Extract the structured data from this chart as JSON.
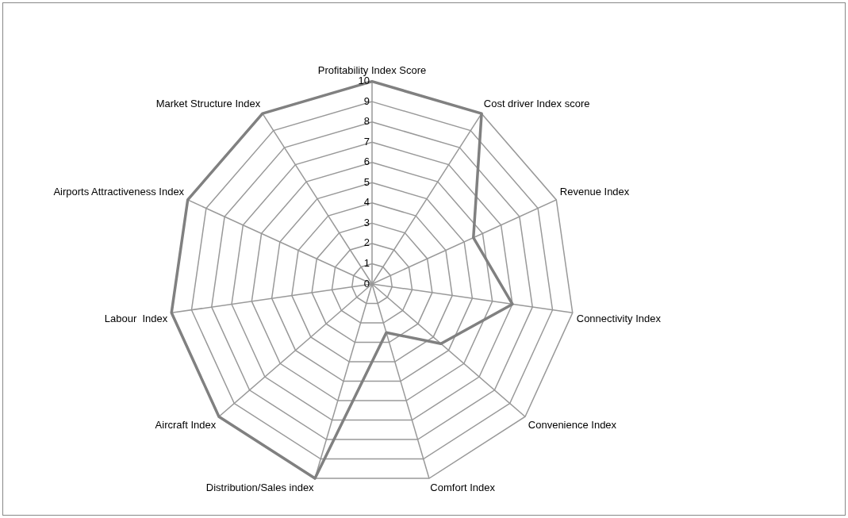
{
  "chart_data": {
    "type": "radar",
    "categories": [
      "Profitability Index Score",
      "Cost driver Index score",
      "Revenue Index",
      "Connectivity Index",
      "Convenience Index",
      "Comfort Index",
      "Distribution/Sales index",
      "Aircraft Index",
      "Labour  Index",
      "Airports Attractiveness Index",
      "Market Structure Index"
    ],
    "series": [
      {
        "color": "#808080",
        "values": [
          10,
          10,
          5.5,
          7,
          4.5,
          2.5,
          10,
          10,
          10,
          10,
          10
        ]
      }
    ],
    "ylim": [
      0,
      10
    ],
    "yticks": [
      0,
      1,
      2,
      3,
      4,
      5,
      6,
      7,
      8,
      9,
      10
    ],
    "grid": true,
    "legend": false,
    "marker": "none"
  }
}
